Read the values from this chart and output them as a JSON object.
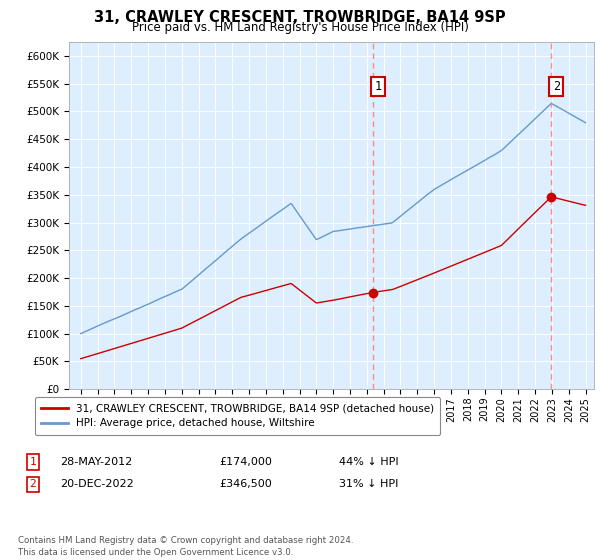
{
  "title": "31, CRAWLEY CRESCENT, TROWBRIDGE, BA14 9SP",
  "subtitle": "Price paid vs. HM Land Registry's House Price Index (HPI)",
  "plot_bg_color": "#ddeeff",
  "ylabel_ticks": [
    "£0",
    "£50K",
    "£100K",
    "£150K",
    "£200K",
    "£250K",
    "£300K",
    "£350K",
    "£400K",
    "£450K",
    "£500K",
    "£550K",
    "£600K"
  ],
  "ytick_values": [
    0,
    50000,
    100000,
    150000,
    200000,
    250000,
    300000,
    350000,
    400000,
    450000,
    500000,
    550000,
    600000
  ],
  "ylim": [
    0,
    625000
  ],
  "hpi_color": "#6699cc",
  "price_color": "#cc0000",
  "vline_color": "#ff8888",
  "marker1_date": 2012.38,
  "marker1_price": 174000,
  "marker2_date": 2022.96,
  "marker2_price": 346500,
  "legend_label1": "31, CRAWLEY CRESCENT, TROWBRIDGE, BA14 9SP (detached house)",
  "legend_label2": "HPI: Average price, detached house, Wiltshire",
  "row1_num": "1",
  "row1_date": "28-MAY-2012",
  "row1_price": "£174,000",
  "row1_hpi": "44% ↓ HPI",
  "row2_num": "2",
  "row2_date": "20-DEC-2022",
  "row2_price": "£346,500",
  "row2_hpi": "31% ↓ HPI",
  "footer": "Contains HM Land Registry data © Crown copyright and database right 2024.\nThis data is licensed under the Open Government Licence v3.0."
}
